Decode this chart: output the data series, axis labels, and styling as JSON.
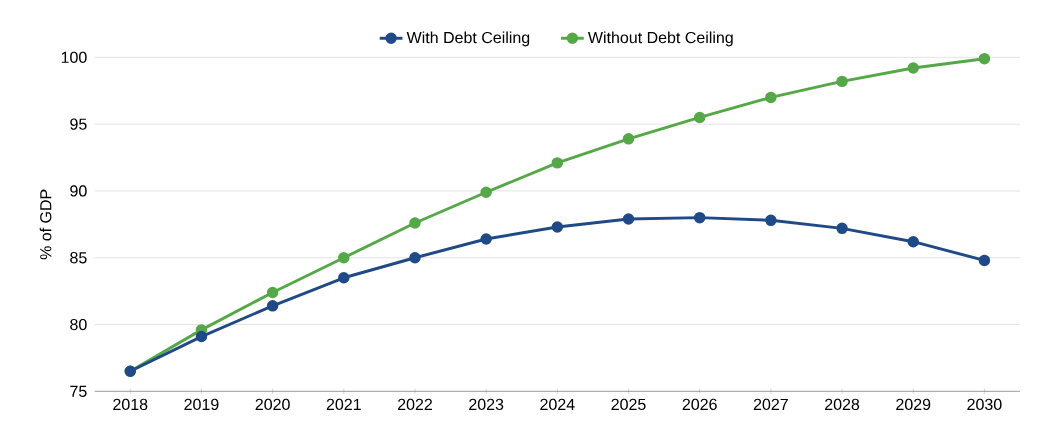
{
  "chart_data": {
    "type": "line",
    "ylabel": "% of GDP",
    "categories": [
      "2018",
      "2019",
      "2020",
      "2021",
      "2022",
      "2023",
      "2024",
      "2025",
      "2026",
      "2027",
      "2028",
      "2029",
      "2030"
    ],
    "series": [
      {
        "name": "With Debt Ceiling",
        "color": "#1f4a87",
        "values": [
          76.5,
          79.1,
          81.4,
          83.5,
          85.0,
          86.4,
          87.3,
          87.9,
          88.0,
          87.8,
          87.2,
          86.2,
          84.8
        ]
      },
      {
        "name": "Without Debt Ceiling",
        "color": "#55a847",
        "values": [
          76.5,
          79.6,
          82.4,
          85.0,
          87.6,
          89.9,
          92.1,
          93.9,
          95.5,
          97.0,
          98.2,
          99.2,
          99.9
        ]
      }
    ],
    "ylim": [
      75,
      100
    ],
    "yticks": [
      75,
      80,
      85,
      90,
      95,
      100
    ],
    "grid": "y",
    "legend": "top",
    "marker": "circle",
    "line_style": "solid"
  }
}
